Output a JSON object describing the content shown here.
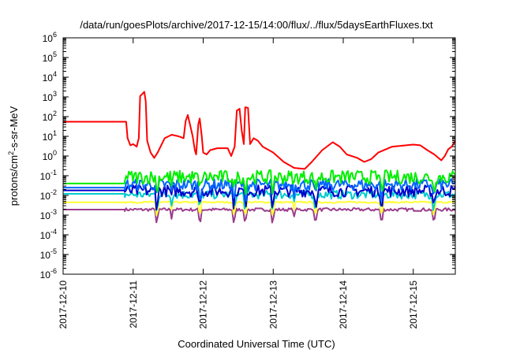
{
  "chart_data": {
    "type": "line",
    "title": "/data/run/goesPlots/archive/2017-12-15/14:00/flux/../flux/5daysEarthFluxes.txt",
    "xlabel": "Coordinated Universal Time (UTC)",
    "ylabel_base": "protons/cm",
    "ylabel_sup": "2",
    "ylabel_rest": "-s-sr-MeV",
    "y_scale": "log",
    "ylim": [
      1e-06,
      1000000
    ],
    "y_tick_exponents": [
      -6,
      -5,
      -4,
      -3,
      -2,
      -1,
      0,
      1,
      2,
      3,
      4,
      5,
      6
    ],
    "y_tick_base": "10",
    "xlim": [
      0,
      5.6
    ],
    "x_ticks": [
      {
        "x": 0,
        "label": "2017-12-10"
      },
      {
        "x": 1,
        "label": "2017-12-11"
      },
      {
        "x": 2,
        "label": "2017-12-12"
      },
      {
        "x": 3,
        "label": "2017-12-13"
      },
      {
        "x": 4,
        "label": "2017-12-14"
      },
      {
        "x": 5,
        "label": "2017-12-15"
      }
    ],
    "grid": false,
    "legend": "none",
    "series": [
      {
        "color": "#9b3c8c",
        "base": 0.0019,
        "start": 0.0019,
        "noise": 0.08,
        "dips": true
      },
      {
        "color": "#ffff33",
        "base": 0.0045,
        "start": 0.0045,
        "noise": 0.04,
        "dips": true
      },
      {
        "color": "#00cccc",
        "base": 0.011,
        "start": 0.012,
        "noise": 0.22,
        "dips": true
      },
      {
        "color": "#0000cc",
        "base": 0.017,
        "start": 0.018,
        "noise": 0.3,
        "dips": true
      },
      {
        "color": "#0066ff",
        "base": 0.035,
        "start": 0.025,
        "noise": 0.3,
        "dips": true
      },
      {
        "color": "#00ee00",
        "base": 0.085,
        "start": 0.04,
        "noise": 0.35,
        "dips": true
      },
      {
        "color": "#ff0000",
        "points": [
          [
            0,
            55
          ],
          [
            0.9,
            55
          ],
          [
            0.92,
            8
          ],
          [
            0.96,
            3.5
          ],
          [
            1.0,
            4
          ],
          [
            1.05,
            3
          ],
          [
            1.08,
            8
          ],
          [
            1.1,
            1100
          ],
          [
            1.16,
            1800
          ],
          [
            1.18,
            600
          ],
          [
            1.2,
            6
          ],
          [
            1.25,
            1.5
          ],
          [
            1.3,
            0.8
          ],
          [
            1.35,
            1.5
          ],
          [
            1.45,
            8
          ],
          [
            1.55,
            12
          ],
          [
            1.65,
            10
          ],
          [
            1.72,
            8
          ],
          [
            1.75,
            60
          ],
          [
            1.78,
            120
          ],
          [
            1.82,
            30
          ],
          [
            1.85,
            10
          ],
          [
            1.88,
            2
          ],
          [
            1.9,
            1.2
          ],
          [
            1.93,
            40
          ],
          [
            1.95,
            80
          ],
          [
            1.98,
            10
          ],
          [
            2.0,
            1.5
          ],
          [
            2.05,
            1.2
          ],
          [
            2.1,
            2
          ],
          [
            2.2,
            2.5
          ],
          [
            2.35,
            2.5
          ],
          [
            2.4,
            1
          ],
          [
            2.45,
            3
          ],
          [
            2.48,
            200
          ],
          [
            2.52,
            250
          ],
          [
            2.55,
            20
          ],
          [
            2.58,
            4
          ],
          [
            2.6,
            300
          ],
          [
            2.64,
            280
          ],
          [
            2.67,
            4
          ],
          [
            2.72,
            8
          ],
          [
            2.78,
            6
          ],
          [
            2.85,
            3
          ],
          [
            3.0,
            1.5
          ],
          [
            3.15,
            0.5
          ],
          [
            3.3,
            0.25
          ],
          [
            3.45,
            0.22
          ],
          [
            3.55,
            0.5
          ],
          [
            3.7,
            2
          ],
          [
            3.85,
            5
          ],
          [
            3.95,
            3
          ],
          [
            4.05,
            1.2
          ],
          [
            4.2,
            0.8
          ],
          [
            4.3,
            0.5
          ],
          [
            4.4,
            0.7
          ],
          [
            4.5,
            1.5
          ],
          [
            4.7,
            3
          ],
          [
            4.9,
            3.5
          ],
          [
            5.0,
            3.8
          ],
          [
            5.1,
            3.5
          ],
          [
            5.2,
            2
          ],
          [
            5.3,
            1.2
          ],
          [
            5.4,
            0.6
          ],
          [
            5.45,
            1
          ],
          [
            5.5,
            2.2
          ],
          [
            5.55,
            3
          ],
          [
            5.6,
            6
          ]
        ]
      }
    ]
  }
}
